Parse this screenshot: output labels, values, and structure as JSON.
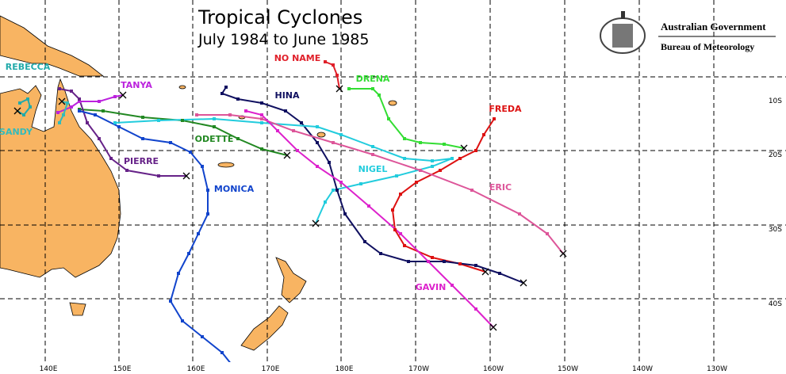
{
  "header": {
    "title": "Tropical Cyclones",
    "subtitle": "July 1984 to June 1985",
    "agency": "Australian Government",
    "bureau": "Bureau of Meteorology"
  },
  "longitudes": [
    "140E",
    "150E",
    "160E",
    "170E",
    "180E",
    "170W",
    "160W",
    "150W",
    "140W",
    "130W"
  ],
  "latitudes": [
    "10S",
    "20S",
    "30S",
    "40S"
  ],
  "cyclones": [
    {
      "name": "NO NAME",
      "color": "#e0202a"
    },
    {
      "name": "DRENA",
      "color": "#33dd33"
    },
    {
      "name": "FREDA",
      "color": "#dd1111"
    },
    {
      "name": "HINA",
      "color": "#101060"
    },
    {
      "name": "TANYA",
      "color": "#bb22dd"
    },
    {
      "name": "REBECCA",
      "color": "#22aaaa"
    },
    {
      "name": "SANDY",
      "color": "#33bbbb"
    },
    {
      "name": "ODETTE",
      "color": "#228822"
    },
    {
      "name": "PIERRE",
      "color": "#662288"
    },
    {
      "name": "MONICA",
      "color": "#1144cc"
    },
    {
      "name": "NIGEL",
      "color": "#22ccdd"
    },
    {
      "name": "ERIC",
      "color": "#dd5599"
    },
    {
      "name": "GAVIN",
      "color": "#dd22cc"
    }
  ]
}
